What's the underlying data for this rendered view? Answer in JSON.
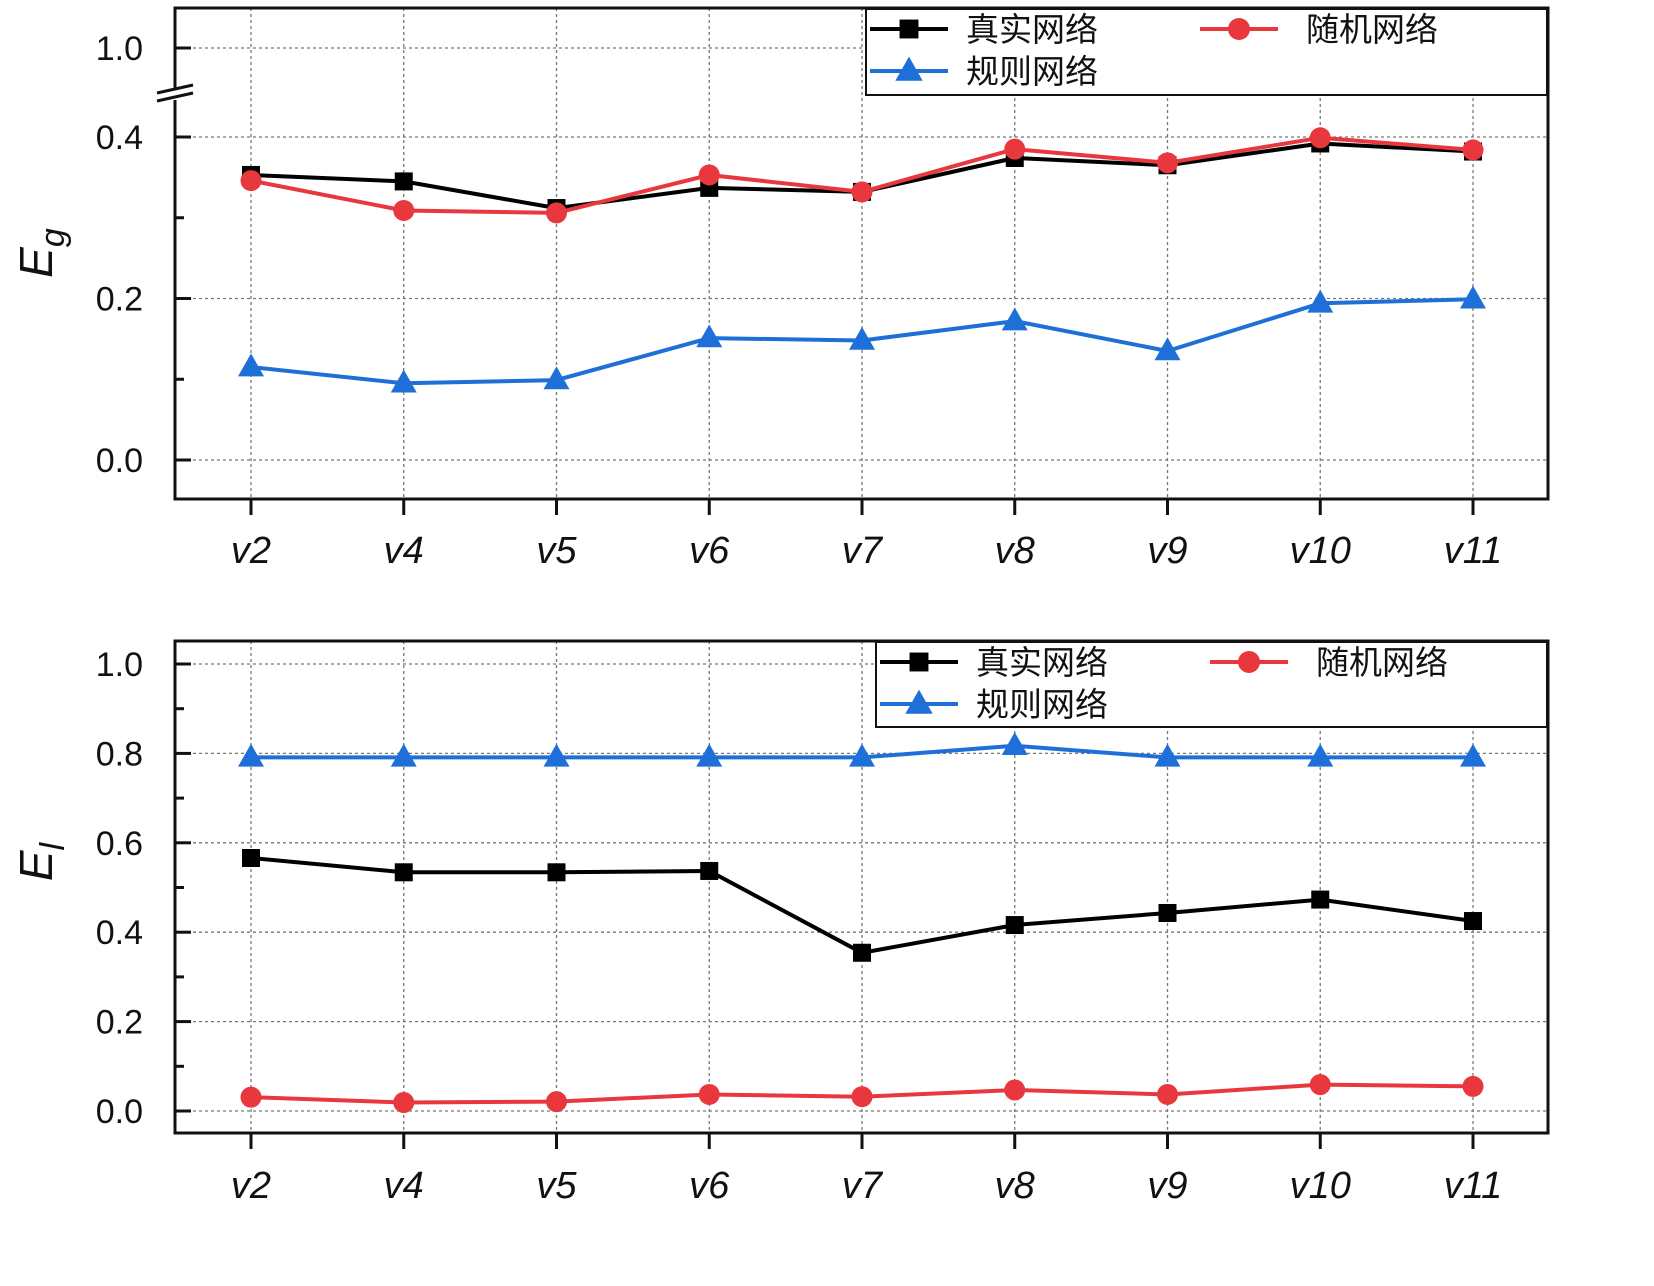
{
  "chart_data": [
    {
      "type": "line",
      "ylabel": "E",
      "ylabel_sub": "g",
      "categories": [
        "v2",
        "v4",
        "v5",
        "v6",
        "v7",
        "v8",
        "v9",
        "v10",
        "v11"
      ],
      "yticks": [
        "0.0",
        "0.2",
        "0.4",
        "1.0"
      ],
      "y_axis_break": [
        0.45,
        0.95
      ],
      "ylim": [
        -0.05,
        1.05
      ],
      "grid": true,
      "legend_position": "top-right",
      "series": [
        {
          "name": "真实网络",
          "color": "#000000",
          "marker": "square",
          "values": [
            0.353,
            0.345,
            0.312,
            0.337,
            0.332,
            0.374,
            0.365,
            0.392,
            0.382
          ]
        },
        {
          "name": "随机网络",
          "color": "#e8383d",
          "marker": "circle",
          "values": [
            0.346,
            0.309,
            0.306,
            0.353,
            0.332,
            0.385,
            0.368,
            0.399,
            0.384
          ]
        },
        {
          "name": "规则网络",
          "color": "#1f6fd8",
          "marker": "triangle",
          "values": [
            0.115,
            0.095,
            0.099,
            0.151,
            0.148,
            0.172,
            0.135,
            0.194,
            0.199
          ]
        }
      ]
    },
    {
      "type": "line",
      "ylabel": "E",
      "ylabel_sub": "l",
      "categories": [
        "v2",
        "v4",
        "v5",
        "v6",
        "v7",
        "v8",
        "v9",
        "v10",
        "v11"
      ],
      "yticks": [
        "0.0",
        "0.2",
        "0.4",
        "0.6",
        "0.8",
        "1.0"
      ],
      "ylim": [
        -0.05,
        1.05
      ],
      "grid": true,
      "legend_position": "top-right",
      "series": [
        {
          "name": "真实网络",
          "color": "#000000",
          "marker": "square",
          "values": [
            0.566,
            0.534,
            0.534,
            0.537,
            0.354,
            0.416,
            0.443,
            0.473,
            0.425
          ]
        },
        {
          "name": "随机网络",
          "color": "#e8383d",
          "marker": "circle",
          "values": [
            0.031,
            0.019,
            0.021,
            0.037,
            0.032,
            0.047,
            0.037,
            0.059,
            0.055
          ]
        },
        {
          "name": "规则网络",
          "color": "#1f6fd8",
          "marker": "triangle",
          "values": [
            0.791,
            0.791,
            0.791,
            0.791,
            0.791,
            0.817,
            0.791,
            0.791,
            0.791
          ]
        }
      ]
    }
  ]
}
